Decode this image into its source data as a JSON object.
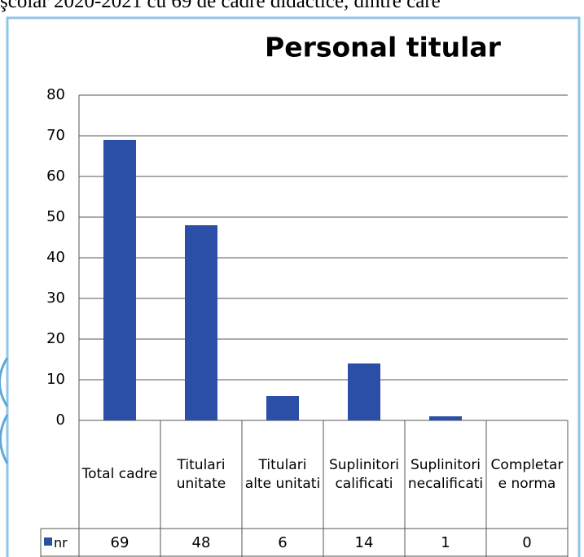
{
  "page_text": "şcolar 2020-2021 cu 69 de cadre didactice, dintre care",
  "chart_data": {
    "type": "bar",
    "title": "Personal titular",
    "categories": [
      "Total cadre",
      "Titulari unitate",
      "Titulari alte unitati",
      "Suplinitori calificati",
      "Suplinitori necalificati",
      "Completare norma"
    ],
    "series": [
      {
        "name": "nr",
        "color": "#2b4ea6",
        "values": [
          69,
          48,
          6,
          14,
          1,
          0
        ]
      }
    ],
    "ylim": [
      0,
      80
    ],
    "yticks": [
      0,
      10,
      20,
      30,
      40,
      50,
      60,
      70,
      80
    ],
    "grid": true
  }
}
